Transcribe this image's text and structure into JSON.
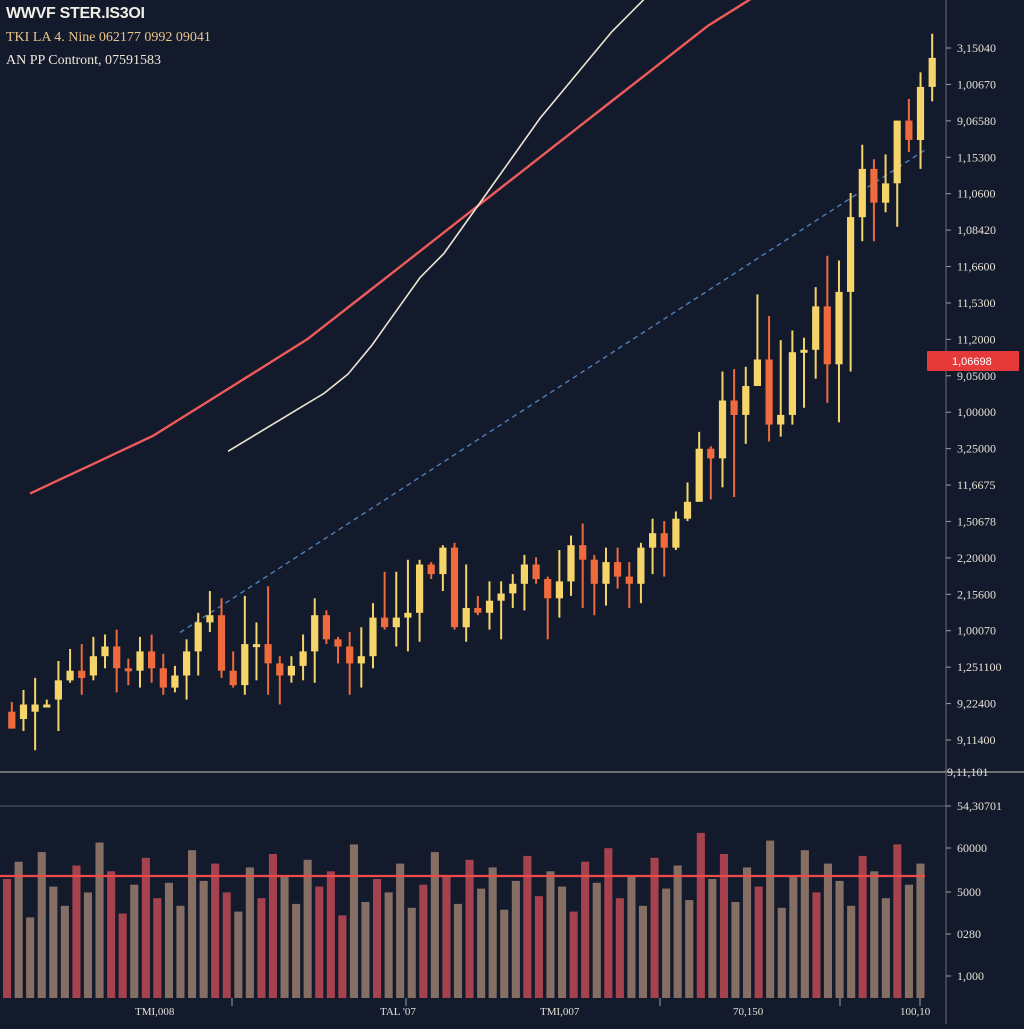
{
  "header": {
    "title": "WWVF STER.IS3OI",
    "line2": "TKI LA 4. Nine 062177 0992 09041",
    "line3": "AN PP Contront, 07591583"
  },
  "colors": {
    "background": "#131a2c",
    "bullish": "#f5d46a",
    "bearish": "#ef6a3c",
    "ma_fast": "#efe6d2",
    "ma_slow": "#ef5a5a",
    "trend": "#4f7fb8",
    "volume_up": "#9a7f6e",
    "volume_down": "#c04a55",
    "volume_line": "#ef4a4a",
    "badge": "#e63a3a"
  },
  "price_axis": {
    "labels": [
      "3,15040",
      "1,00670",
      "9,06580",
      "1,15300",
      "11,0600",
      "1,08420",
      "11,6600",
      "11,5300",
      "11,2000",
      "9,05000",
      "1,00000",
      "3,25000",
      "11,6675",
      "1,50678",
      "2,20000",
      "2,15600",
      "1,00070",
      "1,251100",
      "9,22400",
      "9,11400"
    ],
    "current_badge": "1,06698",
    "extra_label": "9,11,101"
  },
  "volume_axis": {
    "labels": [
      "54,30701",
      "60000",
      "5000",
      "0280",
      "1,000"
    ]
  },
  "x_axis": {
    "labels": [
      "TMI,008",
      "TAL '07",
      "TMI,007",
      "70,150",
      "100,10"
    ]
  },
  "chart_data": {
    "type": "candlestick",
    "candles": [
      [
        25,
        18,
        29,
        18
      ],
      [
        22,
        28,
        34,
        17
      ],
      [
        25,
        28,
        39,
        9
      ],
      [
        28,
        28,
        30,
        28
      ],
      [
        30,
        38,
        46,
        17
      ],
      [
        38,
        42,
        51,
        37
      ],
      [
        42,
        39,
        53,
        32
      ],
      [
        40,
        48,
        56,
        38
      ],
      [
        48,
        52,
        57,
        43
      ],
      [
        52,
        43,
        59,
        33
      ],
      [
        43,
        42,
        47,
        36
      ],
      [
        42,
        50,
        56,
        35
      ],
      [
        50,
        43,
        57,
        37
      ],
      [
        43,
        35,
        49,
        32
      ],
      [
        35,
        40,
        44,
        33
      ],
      [
        40,
        50,
        55,
        30
      ],
      [
        50,
        62,
        66,
        40
      ],
      [
        62,
        65,
        75,
        58
      ],
      [
        65,
        42,
        72,
        39
      ],
      [
        42,
        36,
        50,
        35
      ],
      [
        36,
        53,
        73,
        32
      ],
      [
        53,
        53,
        62,
        38
      ],
      [
        53,
        45,
        77,
        32
      ],
      [
        45,
        40,
        48,
        28
      ],
      [
        40,
        44,
        48,
        37
      ],
      [
        44,
        50,
        57,
        38
      ],
      [
        50,
        65,
        72,
        37
      ],
      [
        65,
        55,
        67,
        53
      ],
      [
        55,
        52,
        56,
        45
      ],
      [
        52,
        45,
        58,
        32
      ],
      [
        45,
        48,
        60,
        35
      ],
      [
        48,
        64,
        70,
        43
      ],
      [
        64,
        60,
        83,
        59
      ],
      [
        60,
        64,
        83,
        52
      ],
      [
        64,
        66,
        88,
        50
      ],
      [
        66,
        86,
        88,
        54
      ],
      [
        86,
        82,
        87,
        80
      ],
      [
        82,
        93,
        94,
        75
      ],
      [
        93,
        60,
        95,
        59
      ],
      [
        60,
        68,
        86,
        54
      ],
      [
        68,
        66,
        73,
        65
      ],
      [
        66,
        71,
        79,
        59
      ],
      [
        71,
        74,
        79,
        55
      ],
      [
        74,
        78,
        82,
        68
      ],
      [
        78,
        86,
        90,
        67
      ],
      [
        86,
        80,
        89,
        78
      ],
      [
        80,
        72,
        81,
        55
      ],
      [
        72,
        79,
        92,
        64
      ],
      [
        79,
        94,
        98,
        73
      ],
      [
        94,
        88,
        103,
        68
      ],
      [
        88,
        78,
        90,
        65
      ],
      [
        78,
        87,
        93,
        69
      ],
      [
        87,
        81,
        93,
        76
      ],
      [
        81,
        78,
        87,
        68
      ],
      [
        78,
        93,
        95,
        70
      ],
      [
        93,
        99,
        105,
        82
      ],
      [
        99,
        93,
        104,
        81
      ],
      [
        93,
        105,
        108,
        92
      ],
      [
        105,
        112,
        120,
        104
      ],
      [
        112,
        134,
        141,
        112
      ],
      [
        134,
        130,
        135,
        113
      ],
      [
        130,
        154,
        166,
        118
      ],
      [
        154,
        148,
        167,
        114
      ],
      [
        148,
        160,
        168,
        136
      ],
      [
        160,
        171,
        198,
        164
      ],
      [
        171,
        144,
        189,
        137
      ],
      [
        144,
        148,
        179,
        139
      ],
      [
        148,
        174,
        183,
        144
      ],
      [
        174,
        175,
        180,
        151
      ],
      [
        175,
        193,
        201,
        163
      ],
      [
        193,
        169,
        214,
        153
      ],
      [
        169,
        199,
        212,
        145
      ],
      [
        199,
        230,
        240,
        166
      ],
      [
        230,
        250,
        260,
        220
      ],
      [
        250,
        236,
        254,
        220
      ],
      [
        236,
        244,
        256,
        232
      ],
      [
        244,
        270,
        270,
        226
      ],
      [
        270,
        262,
        279,
        257
      ],
      [
        262,
        284,
        290,
        250
      ],
      [
        284,
        296,
        306,
        278
      ]
    ],
    "ma_fast": [
      220,
      226,
      232,
      238,
      244,
      252,
      264,
      278,
      292,
      302,
      316,
      330,
      344,
      358,
      370,
      382,
      394,
      404,
      414,
      424,
      434,
      442,
      448,
      456,
      466,
      474,
      482,
      490,
      500,
      510
    ],
    "ma_slow": [
      190,
      196,
      202,
      208,
      214,
      222,
      230,
      238,
      246,
      254,
      264,
      274,
      284,
      294,
      304,
      314,
      324,
      334,
      344,
      354,
      364,
      374,
      384,
      392,
      400,
      410,
      420,
      430,
      440,
      450
    ],
    "trend": [
      120,
      140,
      160,
      180,
      200,
      220,
      240,
      260,
      280,
      300,
      320
    ],
    "volume": [
      62,
      71,
      42,
      76,
      58,
      48,
      69,
      55,
      81,
      66,
      44,
      59,
      73,
      52,
      60,
      48,
      77,
      61,
      70,
      55,
      45,
      68,
      52,
      75,
      64,
      49,
      72,
      58,
      66,
      43,
      80,
      50,
      62,
      55,
      70,
      47,
      59,
      76,
      63,
      49,
      72,
      57,
      68,
      46,
      61,
      74,
      53,
      66,
      58,
      45,
      71,
      60,
      78,
      52,
      64,
      48,
      73,
      57,
      69,
      51,
      86,
      62,
      75,
      50,
      68,
      58,
      82,
      47,
      63,
      77,
      55,
      70,
      61,
      48,
      74,
      66,
      52,
      80,
      59,
      70
    ]
  }
}
